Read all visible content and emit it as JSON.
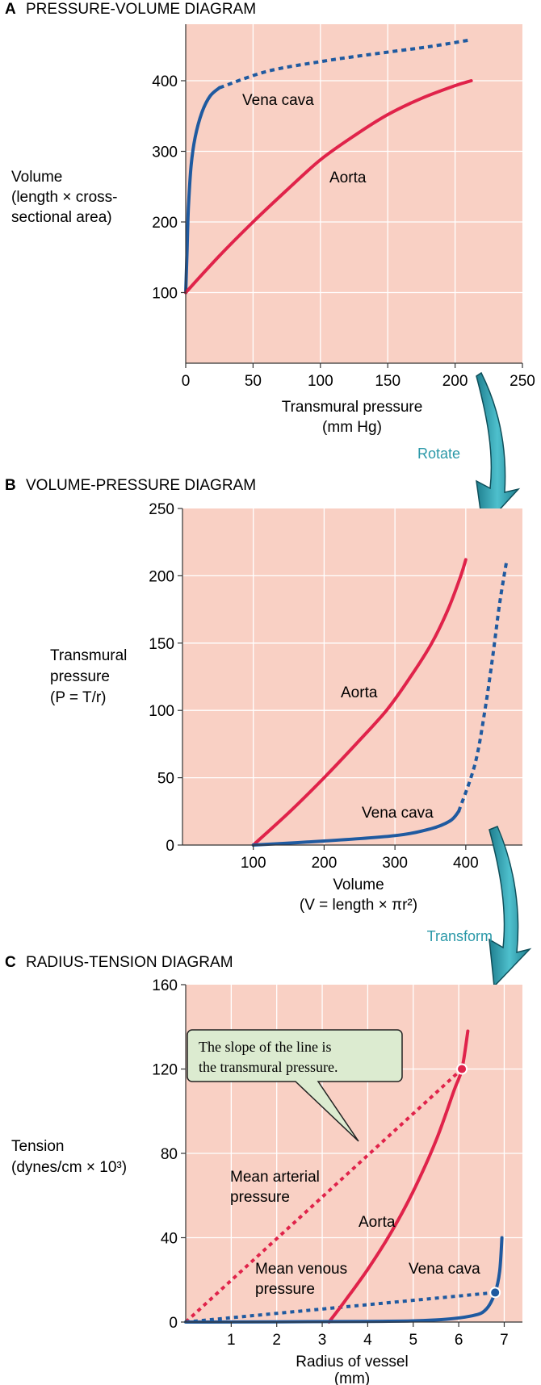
{
  "colors": {
    "plot_bg": "#f9d0c4",
    "grid": "#ffffff",
    "aorta": "#e0234a",
    "vena_cava": "#1f5aa0",
    "arrow_teal": "#2a98a8",
    "callout_bg": "#dcebd0",
    "axis": "#333333"
  },
  "arrows": {
    "rotate_label": "Rotate",
    "transform_label": "Transform"
  },
  "chart_data": [
    {
      "type": "line",
      "panel_letter": "A",
      "title": "PRESSURE-VOLUME DIAGRAM",
      "xlabel": [
        "Transmural pressure",
        "(mm Hg)"
      ],
      "ylabel": [
        "Volume",
        "(length × cross-",
        "sectional area)"
      ],
      "xlim": [
        0,
        250
      ],
      "ylim": [
        0,
        480
      ],
      "x_ticks": [
        0,
        50,
        100,
        150,
        200,
        250
      ],
      "y_ticks": [
        100,
        200,
        300,
        400
      ],
      "grid": true,
      "series": [
        {
          "name": "Vena cava",
          "color": "#1f5aa0",
          "solid": [
            [
              0,
              100
            ],
            [
              1,
              160
            ],
            [
              2,
              220
            ],
            [
              4,
              280
            ],
            [
              7,
              320
            ],
            [
              12,
              355
            ],
            [
              18,
              378
            ],
            [
              25,
              390
            ]
          ],
          "dashed": [
            [
              25,
              390
            ],
            [
              60,
              413
            ],
            [
              100,
              427
            ],
            [
              140,
              438
            ],
            [
              180,
              448
            ],
            [
              212,
              458
            ]
          ]
        },
        {
          "name": "Aorta",
          "color": "#e0234a",
          "solid": [
            [
              0,
              100
            ],
            [
              25,
              152
            ],
            [
              50,
              200
            ],
            [
              75,
              245
            ],
            [
              100,
              288
            ],
            [
              125,
              322
            ],
            [
              150,
              352
            ],
            [
              175,
              375
            ],
            [
              200,
              393
            ],
            [
              212,
              400
            ]
          ]
        }
      ]
    },
    {
      "type": "line",
      "panel_letter": "B",
      "title": "VOLUME-PRESSURE DIAGRAM",
      "xlabel": [
        "Volume",
        "(V = length  ×  πr²)"
      ],
      "ylabel": [
        "Transmural",
        "pressure",
        "(P = T/r)"
      ],
      "xlim": [
        0,
        480
      ],
      "ylim": [
        0,
        250
      ],
      "x_ticks": [
        100,
        200,
        300,
        400
      ],
      "y_ticks": [
        0,
        50,
        100,
        150,
        200,
        250
      ],
      "grid": true,
      "series": [
        {
          "name": "Aorta",
          "color": "#e0234a",
          "solid": [
            [
              100,
              0
            ],
            [
              152,
              25
            ],
            [
              200,
              50
            ],
            [
              245,
              75
            ],
            [
              288,
              100
            ],
            [
              322,
              125
            ],
            [
              352,
              150
            ],
            [
              375,
              175
            ],
            [
              393,
              200
            ],
            [
              400,
              212
            ]
          ]
        },
        {
          "name": "Vena cava",
          "color": "#1f5aa0",
          "solid": [
            [
              100,
              0
            ],
            [
              200,
              3
            ],
            [
              300,
              7
            ],
            [
              350,
              12
            ],
            [
              378,
              18
            ],
            [
              390,
              25
            ]
          ],
          "dashed": [
            [
              390,
              25
            ],
            [
              413,
              60
            ],
            [
              427,
              100
            ],
            [
              438,
              140
            ],
            [
              448,
              180
            ],
            [
              458,
              212
            ]
          ]
        }
      ]
    },
    {
      "type": "line",
      "panel_letter": "C",
      "title": "RADIUS-TENSION DIAGRAM",
      "xlabel": [
        "Radius of vessel",
        "(mm)"
      ],
      "ylabel": [
        "Tension",
        "(dynes/cm × 10³)"
      ],
      "xlim": [
        0,
        7.4
      ],
      "ylim": [
        0,
        160
      ],
      "x_ticks": [
        1,
        2,
        3,
        4,
        5,
        6,
        7
      ],
      "y_ticks": [
        0,
        40,
        80,
        120,
        160
      ],
      "grid": true,
      "series": [
        {
          "name": "Aorta",
          "color": "#e0234a",
          "solid": [
            [
              3.15,
              0
            ],
            [
              3.5,
              10
            ],
            [
              4.0,
              25
            ],
            [
              4.5,
              42
            ],
            [
              5.0,
              62
            ],
            [
              5.5,
              86
            ],
            [
              5.9,
              110
            ],
            [
              6.07,
              120
            ],
            [
              6.2,
              138
            ]
          ]
        },
        {
          "name": "Vena cava",
          "color": "#1f5aa0",
          "solid": [
            [
              0,
              0
            ],
            [
              4.0,
              0.3
            ],
            [
              5.5,
              1
            ],
            [
              6.3,
              3
            ],
            [
              6.6,
              6
            ],
            [
              6.8,
              14
            ],
            [
              6.9,
              24
            ],
            [
              6.95,
              40
            ]
          ]
        }
      ],
      "pressure_lines": [
        {
          "name": "Mean arterial pressure",
          "color": "#e0234a",
          "from": [
            0,
            0
          ],
          "to": [
            6.07,
            120
          ]
        },
        {
          "name": "Mean venous pressure",
          "color": "#1f5aa0",
          "from": [
            0,
            0
          ],
          "to": [
            6.8,
            14
          ]
        }
      ],
      "points": [
        {
          "x": 6.07,
          "y": 120,
          "color": "#e0234a"
        },
        {
          "x": 6.8,
          "y": 14,
          "color": "#1f5aa0"
        }
      ],
      "labels": {
        "mean_arterial": [
          "Mean arterial",
          "pressure"
        ],
        "mean_venous": [
          "Mean venous",
          "pressure"
        ]
      },
      "callout": [
        "The slope of the line is",
        "the transmural pressure."
      ]
    }
  ]
}
